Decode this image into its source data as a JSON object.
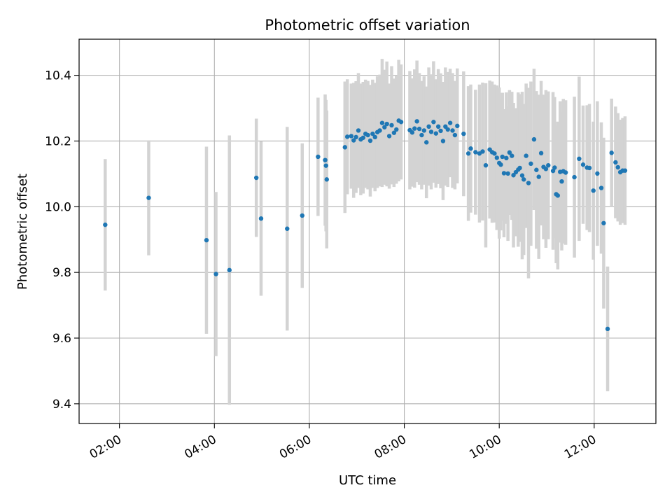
{
  "chart_data": {
    "type": "scatter",
    "title": "Photometric offset variation",
    "xlabel": "UTC time",
    "ylabel": "Photometric offset",
    "x_unit": "hours (UTC)",
    "xlim": [
      "01:09",
      "13:18"
    ],
    "ylim": [
      9.34,
      10.51
    ],
    "x_ticks": [
      "02:00",
      "04:00",
      "06:00",
      "08:00",
      "10:00",
      "12:00"
    ],
    "y_ticks": [
      "9.4",
      "9.6",
      "9.8",
      "10.0",
      "10.2",
      "10.4"
    ],
    "grid": true,
    "legend": "none",
    "colors": {
      "point": "#1f77b4",
      "errorbar": "#d3d3d3",
      "grid": "#b0b0b0"
    },
    "series": [
      {
        "x": [
          "01:42",
          "02:37",
          "03:50",
          "04:02",
          "04:19",
          "04:53",
          "04:59",
          "05:32",
          "05:51",
          "06:11",
          "06:20",
          "06:21",
          "06:22",
          "06:45",
          "06:48",
          "06:53",
          "06:56",
          "06:59",
          "07:02",
          "07:05",
          "07:08",
          "07:11",
          "07:14",
          "07:17",
          "07:20",
          "07:23",
          "07:26",
          "07:29",
          "07:32",
          "07:35",
          "07:38",
          "07:41",
          "07:44",
          "07:47",
          "07:50",
          "07:53",
          "07:56",
          "08:07",
          "08:10",
          "08:13",
          "08:16",
          "08:19",
          "08:22",
          "08:25",
          "08:28",
          "08:31",
          "08:34",
          "08:37",
          "08:40",
          "08:43",
          "08:46",
          "08:49",
          "08:52",
          "08:55",
          "08:58",
          "09:01",
          "09:04",
          "09:07",
          "09:15",
          "09:21",
          "09:24",
          "09:30",
          "09:35",
          "09:39",
          "09:43",
          "09:48",
          "09:51",
          "09:54",
          "09:57",
          "10:00",
          "10:02",
          "10:04",
          "10:06",
          "10:09",
          "10:11",
          "10:13",
          "10:16",
          "10:18",
          "10:21",
          "10:24",
          "10:26",
          "10:29",
          "10:31",
          "10:34",
          "10:37",
          "10:40",
          "10:44",
          "10:47",
          "10:50",
          "10:53",
          "10:56",
          "10:59",
          "11:02",
          "11:08",
          "11:10",
          "11:12",
          "11:14",
          "11:17",
          "11:19",
          "11:21",
          "11:24",
          "11:35",
          "11:41",
          "11:46",
          "11:51",
          "11:54",
          "11:59",
          "12:04",
          "12:09",
          "12:12",
          "12:17",
          "12:22",
          "12:27",
          "12:30",
          "12:33",
          "12:36",
          "12:39"
        ],
        "y": [
          9.945,
          10.027,
          9.898,
          9.795,
          9.807,
          10.088,
          9.964,
          9.933,
          9.973,
          10.152,
          10.142,
          10.125,
          10.083,
          10.181,
          10.213,
          10.215,
          10.202,
          10.212,
          10.232,
          10.205,
          10.21,
          10.222,
          10.218,
          10.201,
          10.222,
          10.212,
          10.227,
          10.232,
          10.255,
          10.242,
          10.252,
          10.215,
          10.248,
          10.225,
          10.235,
          10.262,
          10.258,
          10.233,
          10.226,
          10.238,
          10.26,
          10.237,
          10.218,
          10.232,
          10.196,
          10.244,
          10.228,
          10.258,
          10.223,
          10.244,
          10.231,
          10.2,
          10.244,
          10.235,
          10.255,
          10.232,
          10.218,
          10.246,
          10.222,
          10.162,
          10.177,
          10.166,
          10.162,
          10.168,
          10.126,
          10.174,
          10.166,
          10.162,
          10.149,
          10.133,
          10.128,
          10.152,
          10.102,
          10.148,
          10.101,
          10.165,
          10.155,
          10.096,
          10.105,
          10.113,
          10.118,
          10.095,
          10.083,
          10.155,
          10.072,
          10.131,
          10.205,
          10.112,
          10.091,
          10.163,
          10.121,
          10.115,
          10.126,
          10.109,
          10.119,
          10.038,
          10.034,
          10.106,
          10.077,
          10.108,
          10.104,
          10.09,
          10.146,
          10.128,
          10.119,
          10.118,
          10.049,
          10.101,
          10.057,
          9.95,
          9.628,
          10.164,
          10.135,
          10.12,
          10.105,
          10.11,
          10.11
        ],
        "yerr": [
          0.2,
          0.175,
          0.285,
          0.25,
          0.41,
          0.18,
          0.235,
          0.31,
          0.22,
          0.18,
          0.2,
          0.2,
          0.21,
          0.2,
          0.175,
          0.16,
          0.175,
          0.17,
          0.175,
          0.17,
          0.17,
          0.165,
          0.165,
          0.17,
          0.165,
          0.165,
          0.17,
          0.17,
          0.195,
          0.175,
          0.19,
          0.16,
          0.18,
          0.165,
          0.165,
          0.185,
          0.175,
          0.18,
          0.165,
          0.18,
          0.185,
          0.17,
          0.165,
          0.165,
          0.17,
          0.18,
          0.175,
          0.185,
          0.165,
          0.175,
          0.175,
          0.18,
          0.18,
          0.175,
          0.165,
          0.175,
          0.165,
          0.175,
          0.19,
          0.205,
          0.195,
          0.19,
          0.21,
          0.21,
          0.25,
          0.21,
          0.215,
          0.21,
          0.22,
          0.23,
          0.2,
          0.195,
          0.195,
          0.2,
          0.205,
          0.19,
          0.195,
          0.22,
          0.195,
          0.235,
          0.225,
          0.255,
          0.23,
          0.22,
          0.29,
          0.25,
          0.215,
          0.24,
          0.25,
          0.22,
          0.22,
          0.24,
          0.225,
          0.24,
          0.215,
          0.21,
          0.225,
          0.215,
          0.21,
          0.22,
          0.22,
          0.245,
          0.25,
          0.18,
          0.19,
          0.195,
          0.21,
          0.22,
          0.2,
          0.26,
          0.19,
          0.165,
          0.17,
          0.165,
          0.16,
          0.16,
          0.165
        ]
      }
    ]
  }
}
